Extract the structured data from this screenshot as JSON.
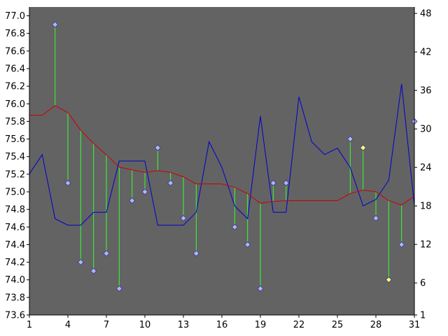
{
  "chart_data": {
    "type": "line",
    "title": "",
    "xlabel": "",
    "ylabel": "",
    "y2label": "",
    "x": [
      1,
      2,
      3,
      4,
      5,
      6,
      7,
      8,
      9,
      10,
      11,
      12,
      13,
      14,
      15,
      16,
      17,
      18,
      19,
      20,
      21,
      22,
      23,
      24,
      25,
      26,
      27,
      28,
      29,
      30,
      31
    ],
    "x_ticks": [
      1,
      4,
      7,
      10,
      13,
      16,
      19,
      22,
      25,
      28,
      31
    ],
    "xlim": [
      1,
      31
    ],
    "ylim": [
      73.6,
      77.1
    ],
    "y_ticks": [
      73.6,
      73.8,
      74.0,
      74.2,
      74.4,
      74.6,
      74.8,
      75.0,
      75.2,
      75.4,
      75.6,
      75.8,
      76.0,
      76.2,
      76.4,
      76.6,
      76.8,
      77.0
    ],
    "y2lim": [
      1,
      49
    ],
    "y2_ticks": [
      1,
      6,
      12,
      18,
      24,
      30,
      36,
      42,
      48
    ],
    "grid": false,
    "legend": "none",
    "series": [
      {
        "axis": "left",
        "style": "markers-with-drop-lines",
        "values": [
          null,
          null,
          76.9,
          75.1,
          74.2,
          74.1,
          74.3,
          73.9,
          74.9,
          75.0,
          75.5,
          75.1,
          74.7,
          74.3,
          null,
          null,
          74.6,
          74.4,
          73.9,
          75.1,
          75.1,
          null,
          null,
          null,
          null,
          75.6,
          75.5,
          74.7,
          74.0,
          74.4,
          75.8
        ],
        "highlighted_x": [
          27,
          29
        ]
      },
      {
        "axis": "left",
        "style": "line",
        "values": [
          75.87,
          75.87,
          75.98,
          75.9,
          75.7,
          75.55,
          75.42,
          75.28,
          75.25,
          75.22,
          75.24,
          75.22,
          75.17,
          75.09,
          75.09,
          75.09,
          75.05,
          74.98,
          74.87,
          74.89,
          74.9,
          74.9,
          74.9,
          74.9,
          74.9,
          74.98,
          75.02,
          75.0,
          74.9,
          74.85,
          74.95
        ]
      },
      {
        "axis": "right",
        "style": "line",
        "values": [
          23,
          26,
          16,
          15,
          15,
          17,
          17,
          25,
          25,
          25,
          15,
          15,
          15,
          17,
          28,
          24,
          18,
          16,
          32,
          17,
          17,
          35,
          28,
          26,
          27,
          24,
          18,
          19,
          22,
          37,
          18
        ]
      }
    ],
    "colors": {
      "plot_background": "#636363",
      "page_background": "#ffffff",
      "marker_fill": "#b3b3f5",
      "marker_highlight": "#ffff66",
      "marker_stroke": "#3a3a8a",
      "drop_line": "#33ff33",
      "average_line": "#cc0000",
      "right_axis_line": "#0000cc",
      "axis": "#000000"
    }
  }
}
